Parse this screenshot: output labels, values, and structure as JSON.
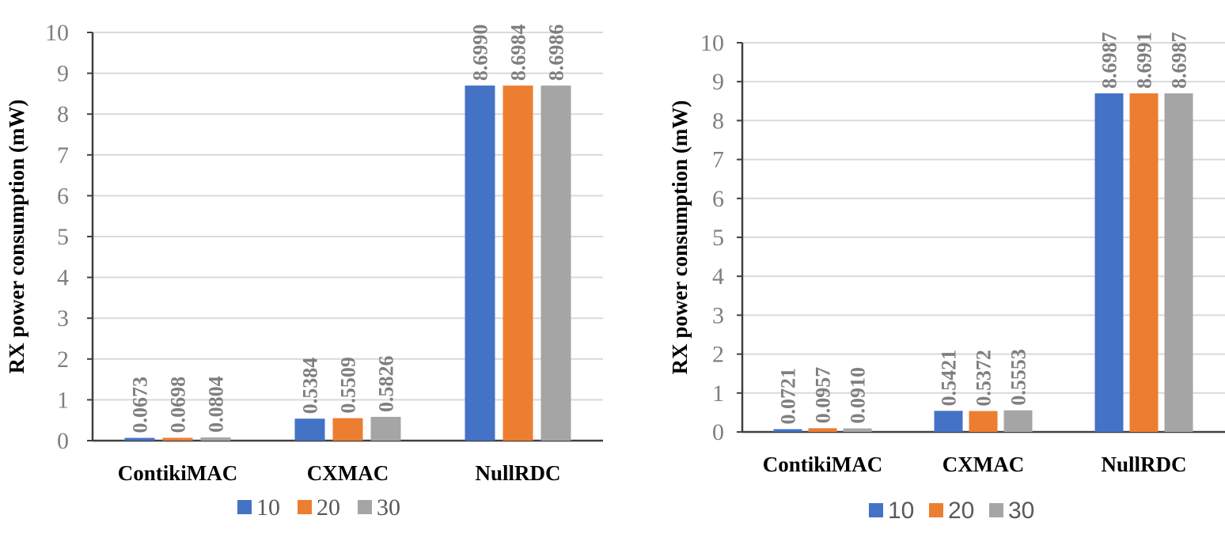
{
  "chart_data": [
    {
      "type": "bar",
      "title": "",
      "xlabel": "",
      "ylabel": "RX power consumption (mW)",
      "ylim": [
        0,
        10
      ],
      "yticks": [
        "0",
        "1",
        "2",
        "3",
        "4",
        "5",
        "6",
        "7",
        "8",
        "9",
        "10"
      ],
      "categories": [
        "ContikiMAC",
        "CXMAC",
        "NullRDC"
      ],
      "series": [
        {
          "name": "10",
          "color": "#4472c4",
          "values": [
            0.0673,
            0.5384,
            8.699
          ],
          "labels": [
            "0.0673",
            "0.5384",
            "8.6990"
          ]
        },
        {
          "name": "20",
          "color": "#ed7d31",
          "values": [
            0.0698,
            0.5509,
            8.6984
          ],
          "labels": [
            "0.0698",
            "0.5509",
            "8.6984"
          ]
        },
        {
          "name": "30",
          "color": "#a5a5a5",
          "values": [
            0.0804,
            0.5826,
            8.6986
          ],
          "labels": [
            "0.0804",
            "0.5826",
            "8.6986"
          ]
        }
      ],
      "legend": "bottom",
      "grid": true
    },
    {
      "type": "bar",
      "title": "",
      "xlabel": "",
      "ylabel": "RX power consumption (mW)",
      "ylim": [
        0,
        10
      ],
      "yticks": [
        "0",
        "1",
        "2",
        "3",
        "4",
        "5",
        "6",
        "7",
        "8",
        "9",
        "10"
      ],
      "categories": [
        "ContikiMAC",
        "CXMAC",
        "NullRDC"
      ],
      "series": [
        {
          "name": "10",
          "color": "#4472c4",
          "values": [
            0.0721,
            0.5421,
            8.6987
          ],
          "labels": [
            "0.0721",
            "0.5421",
            "8.6987"
          ]
        },
        {
          "name": "20",
          "color": "#ed7d31",
          "values": [
            0.0957,
            0.5372,
            8.6991
          ],
          "labels": [
            "0.0957",
            "0.5372",
            "8.6991"
          ]
        },
        {
          "name": "30",
          "color": "#a5a5a5",
          "values": [
            0.091,
            0.5553,
            8.6987
          ],
          "labels": [
            "0.0910",
            "0.5553",
            "8.6987"
          ]
        }
      ],
      "legend": "bottom",
      "grid": true
    }
  ]
}
